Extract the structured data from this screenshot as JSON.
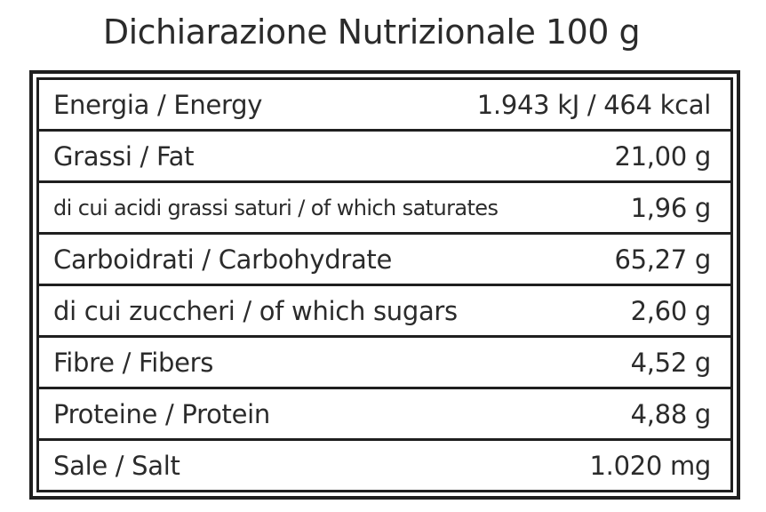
{
  "title": "Dichiarazione Nutrizionale 100 g",
  "rows": [
    {
      "label": "Energia / Energy",
      "value": "1.943 kJ / 464 kcal"
    },
    {
      "label": "Grassi / Fat",
      "value": "21,00 g"
    },
    {
      "label": "di cui acidi grassi saturi / of which saturates",
      "value": "1,96 g"
    },
    {
      "label": "Carboidrati / Carbohydrate",
      "value": "65,27 g"
    },
    {
      "label": "di cui zuccheri / of which sugars",
      "value": "2,60 g"
    },
    {
      "label": "Fibre / Fibers",
      "value": "4,52 g"
    },
    {
      "label": "Proteine / Protein",
      "value": "4,88 g"
    },
    {
      "label": "Sale / Salt",
      "value": "1.020 mg"
    }
  ]
}
